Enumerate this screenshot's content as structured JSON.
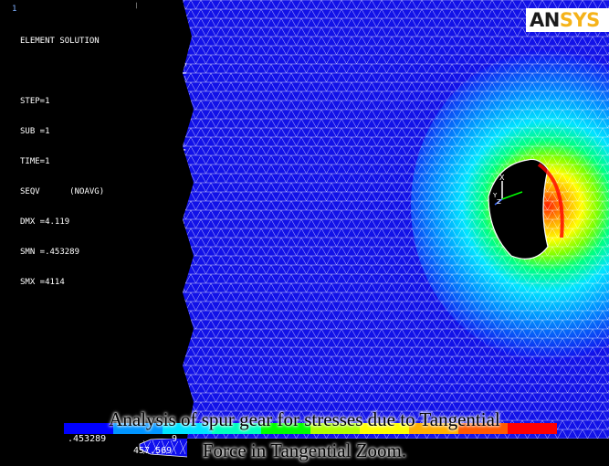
{
  "window": {
    "number": "1"
  },
  "logo": {
    "part1": "AN",
    "part2": "SYS"
  },
  "solution_info": {
    "title": "ELEMENT SOLUTION",
    "lines": [
      "STEP=1",
      "SUB =1",
      "TIME=1",
      "SEQV      (NOAVG)",
      "DMX =4.119",
      "SMN =.453289",
      "SMX =4114"
    ]
  },
  "legend": {
    "colors": [
      "#0000ff",
      "#0094ff",
      "#00e3ff",
      "#00ffbe",
      "#00ff00",
      "#b0ff00",
      "#ffff00",
      "#ffb000",
      "#ff5a00",
      "#ff0000"
    ],
    "labels_top": [
      ".453289",
      "9"
    ],
    "labels_bottom": [
      "457.569"
    ]
  },
  "caption": {
    "line1": "Analysis of spur gear for stresses due to Tangential",
    "line2": "Force in Tangential Zoom."
  },
  "triad": {
    "axis_x": "X",
    "axis_y": "Y",
    "axis_z": "Z"
  },
  "colors": {
    "mesh_base": "#1010ee",
    "mesh_line": "#ffffff",
    "background": "#000000"
  }
}
